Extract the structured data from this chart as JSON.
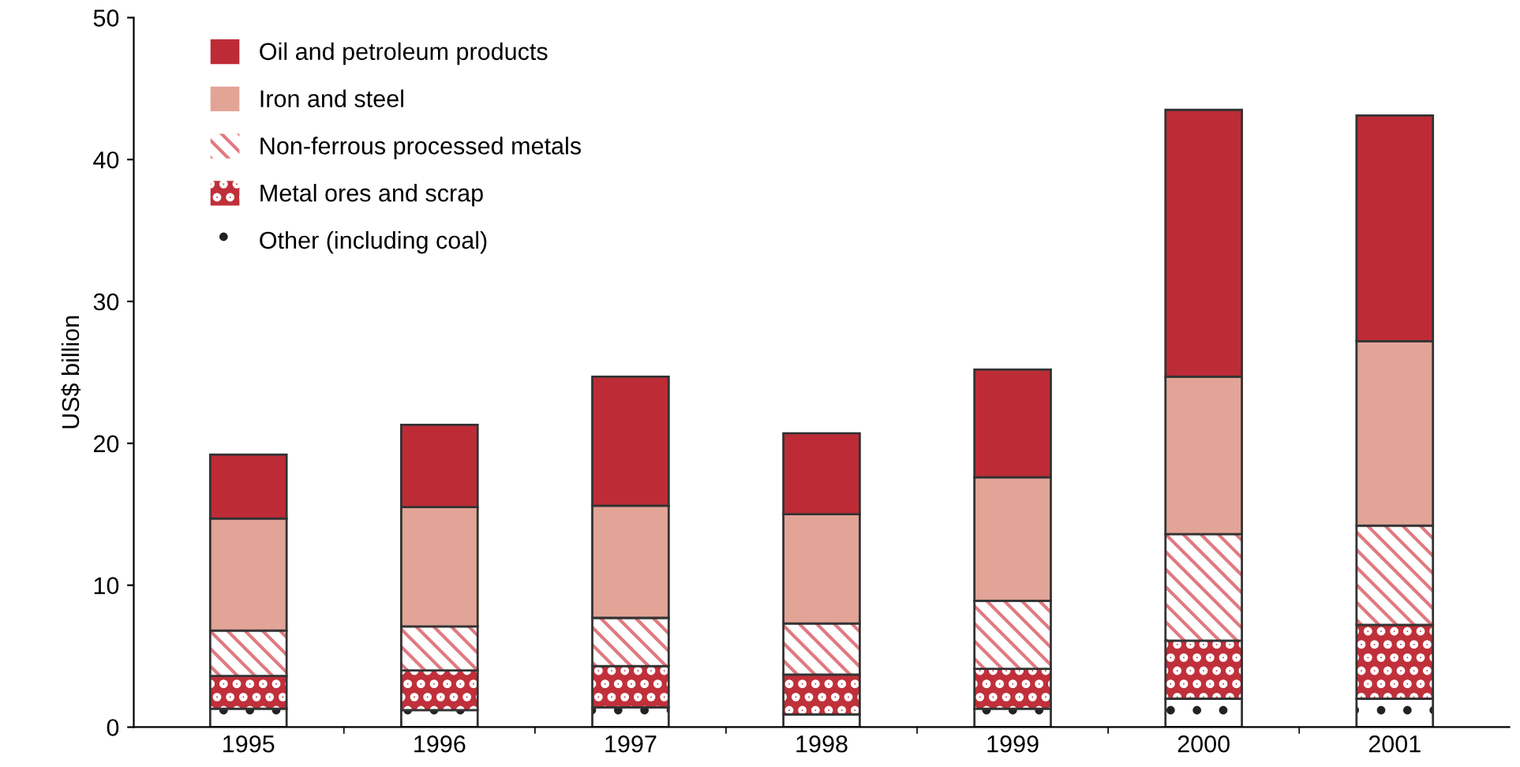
{
  "chart_data": {
    "type": "bar",
    "ylabel": "US$ billion",
    "stacked": true,
    "legend": "top left",
    "grid": false,
    "categories": [
      "1995",
      "1996",
      "1997",
      "1998",
      "1999",
      "2000",
      "2001"
    ],
    "ylim": [
      0,
      50
    ],
    "yticks": [
      0,
      10,
      20,
      30,
      40,
      50
    ],
    "series": [
      {
        "name": "Other (including coal)",
        "color": "#ffffff",
        "values": [
          1.3,
          1.2,
          1.4,
          0.9,
          1.3,
          2.0,
          2.0
        ]
      },
      {
        "name": "Metal ores and scrap",
        "color": "#c0303a",
        "values": [
          2.3,
          2.8,
          2.9,
          2.8,
          2.8,
          4.1,
          5.2
        ]
      },
      {
        "name": "Non-ferrous processed metals",
        "color": "#e07a80",
        "values": [
          3.2,
          3.1,
          3.4,
          3.6,
          4.8,
          7.5,
          7.0
        ]
      },
      {
        "name": "Iron and steel",
        "color": "#e2a497",
        "values": [
          7.9,
          8.4,
          7.9,
          7.7,
          8.7,
          11.1,
          13.0
        ]
      },
      {
        "name": "Oil and petroleum products",
        "color": "#bd2c36",
        "values": [
          4.5,
          5.8,
          9.1,
          5.7,
          7.6,
          18.8,
          15.9
        ]
      }
    ]
  }
}
